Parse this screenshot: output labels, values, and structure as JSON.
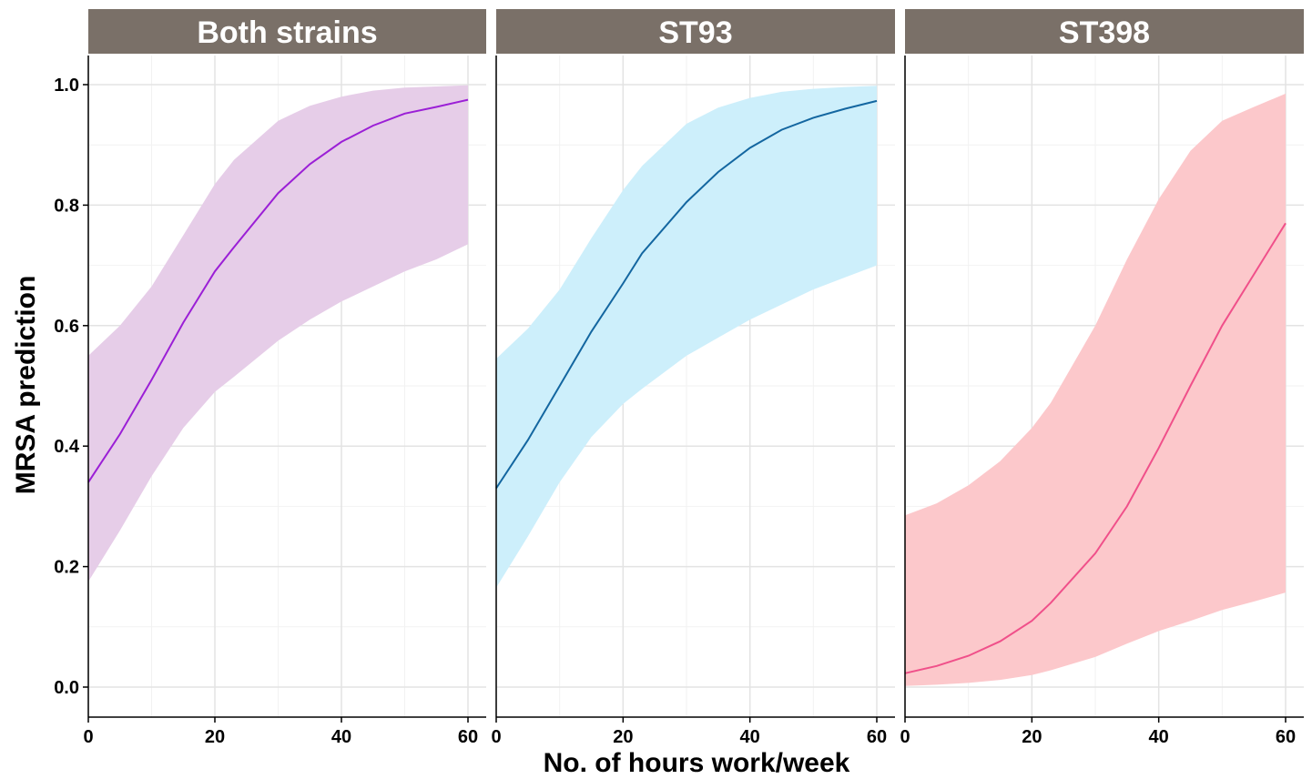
{
  "chart_data": {
    "type": "line",
    "xlabel": "No. of hours work/week",
    "ylabel": "MRSA prediction",
    "xlim": [
      0,
      60
    ],
    "ylim": [
      0,
      1
    ],
    "x_ticks": [
      "0",
      "20",
      "40",
      "60"
    ],
    "y_ticks": [
      "0.0",
      "0.2",
      "0.4",
      "0.6",
      "0.8",
      "1.0"
    ],
    "grid": true,
    "strip_color": "#7a7068",
    "panels": [
      {
        "title": "Both strains",
        "line_color": "#9b1fd6",
        "band_color": "#e6cde8",
        "x": [
          0,
          5,
          10,
          15,
          20,
          23,
          30,
          35,
          40,
          45,
          50,
          55,
          60
        ],
        "y": [
          0.34,
          0.42,
          0.51,
          0.605,
          0.69,
          0.73,
          0.82,
          0.868,
          0.905,
          0.932,
          0.952,
          0.963,
          0.975
        ],
        "lower": [
          0.175,
          0.26,
          0.35,
          0.43,
          0.49,
          0.515,
          0.575,
          0.61,
          0.64,
          0.665,
          0.69,
          0.71,
          0.735
        ],
        "upper": [
          0.55,
          0.6,
          0.665,
          0.75,
          0.835,
          0.875,
          0.94,
          0.965,
          0.98,
          0.99,
          0.995,
          0.997,
          0.999
        ]
      },
      {
        "title": "ST93",
        "line_color": "#1366a0",
        "band_color": "#cdeffb",
        "x": [
          0,
          5,
          10,
          15,
          20,
          23,
          30,
          35,
          40,
          45,
          50,
          55,
          60
        ],
        "y": [
          0.33,
          0.41,
          0.5,
          0.59,
          0.67,
          0.72,
          0.805,
          0.855,
          0.895,
          0.925,
          0.945,
          0.96,
          0.973
        ],
        "lower": [
          0.165,
          0.25,
          0.34,
          0.415,
          0.47,
          0.495,
          0.55,
          0.58,
          0.61,
          0.635,
          0.66,
          0.68,
          0.7
        ],
        "upper": [
          0.545,
          0.595,
          0.66,
          0.745,
          0.825,
          0.865,
          0.935,
          0.962,
          0.978,
          0.988,
          0.993,
          0.996,
          0.998
        ]
      },
      {
        "title": "ST398",
        "line_color": "#f0508a",
        "band_color": "#fcc8cb",
        "x": [
          0,
          5,
          10,
          15,
          20,
          23,
          30,
          35,
          40,
          45,
          50,
          55,
          60
        ],
        "y": [
          0.023,
          0.035,
          0.052,
          0.076,
          0.11,
          0.14,
          0.222,
          0.3,
          0.397,
          0.5,
          0.6,
          0.685,
          0.77
        ],
        "lower": [
          0.002,
          0.004,
          0.007,
          0.012,
          0.02,
          0.028,
          0.05,
          0.072,
          0.093,
          0.11,
          0.128,
          0.142,
          0.157
        ],
        "upper": [
          0.285,
          0.305,
          0.335,
          0.375,
          0.43,
          0.472,
          0.6,
          0.71,
          0.81,
          0.89,
          0.94,
          0.963,
          0.985
        ]
      }
    ]
  }
}
